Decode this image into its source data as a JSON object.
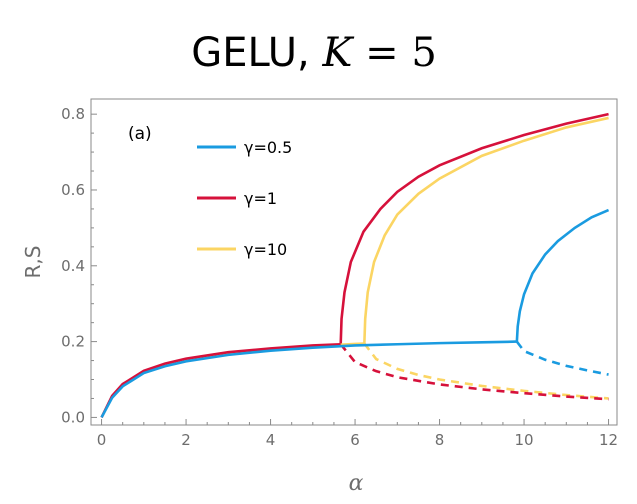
{
  "chart_data": {
    "type": "line",
    "title": {
      "prefix": "GELU,",
      "math_symbol": "K",
      "math_rest": " = 5"
    },
    "panel_label": "(a)",
    "xlabel": "α",
    "ylabel": "R,S",
    "xlim": [
      -0.25,
      12.2
    ],
    "ylim": [
      -0.02,
      0.84
    ],
    "xticks": [
      0,
      2,
      4,
      6,
      8,
      10,
      12
    ],
    "xtick_labels": [
      "0",
      "2",
      "4",
      "6",
      "8",
      "10",
      "12"
    ],
    "yticks": [
      0.0,
      0.2,
      0.4,
      0.6,
      0.8
    ],
    "ytick_labels": [
      "0.0",
      "0.2",
      "0.4",
      "0.6",
      "0.8"
    ],
    "grid": false,
    "legend_position": "top-center",
    "series": [
      {
        "name": "γ=0.5",
        "color": "#1a9be0",
        "transition_alpha": 9.83,
        "lower_branch": {
          "x": [
            0,
            0.25,
            0.5,
            1,
            1.5,
            2,
            3,
            4,
            5,
            6,
            7,
            8,
            9,
            9.83
          ],
          "y": [
            0,
            0.052,
            0.082,
            0.117,
            0.135,
            0.148,
            0.165,
            0.176,
            0.184,
            0.19,
            0.193,
            0.196,
            0.198,
            0.2
          ]
        },
        "upper_branch": {
          "x": [
            9.83,
            9.85,
            9.9,
            10,
            10.2,
            10.5,
            10.8,
            11.2,
            11.6,
            12
          ],
          "y": [
            0.2,
            0.24,
            0.28,
            0.325,
            0.38,
            0.43,
            0.465,
            0.5,
            0.528,
            0.547
          ]
        },
        "unstable_branch": {
          "x": [
            9.83,
            10,
            10.5,
            11,
            11.5,
            12
          ],
          "y": [
            0.2,
            0.175,
            0.152,
            0.136,
            0.124,
            0.113
          ]
        }
      },
      {
        "name": "γ=1",
        "color": "#d6113b",
        "transition_alpha": 5.66,
        "lower_branch": {
          "x": [
            0,
            0.25,
            0.5,
            1,
            1.5,
            2,
            3,
            4,
            5,
            5.66
          ],
          "y": [
            0,
            0.057,
            0.088,
            0.123,
            0.142,
            0.155,
            0.172,
            0.182,
            0.19,
            0.193
          ]
        },
        "upper_branch": {
          "x": [
            5.66,
            5.68,
            5.75,
            5.9,
            6.2,
            6.6,
            7,
            7.5,
            8,
            9,
            10,
            11,
            12
          ],
          "y": [
            0.193,
            0.26,
            0.33,
            0.41,
            0.49,
            0.55,
            0.595,
            0.635,
            0.665,
            0.71,
            0.745,
            0.775,
            0.8
          ]
        },
        "unstable_branch": {
          "x": [
            5.66,
            6,
            6.5,
            7,
            8,
            9,
            10,
            11,
            12
          ],
          "y": [
            0.193,
            0.146,
            0.122,
            0.106,
            0.087,
            0.074,
            0.064,
            0.055,
            0.048
          ]
        }
      },
      {
        "name": "γ=10",
        "color": "#fbd563",
        "transition_alpha": 6.22,
        "lower_branch": {
          "x": [
            0,
            0.25,
            0.5,
            1,
            1.5,
            2,
            3,
            4,
            5,
            6,
            6.22
          ],
          "y": [
            0,
            0.055,
            0.085,
            0.121,
            0.14,
            0.152,
            0.17,
            0.18,
            0.188,
            0.194,
            0.195
          ]
        },
        "upper_branch": {
          "x": [
            6.22,
            6.24,
            6.3,
            6.45,
            6.7,
            7,
            7.5,
            8,
            9,
            10,
            11,
            12
          ],
          "y": [
            0.195,
            0.26,
            0.33,
            0.41,
            0.48,
            0.535,
            0.59,
            0.63,
            0.69,
            0.73,
            0.765,
            0.79
          ]
        },
        "unstable_branch": {
          "x": [
            6.22,
            6.5,
            7,
            7.5,
            8,
            9,
            10,
            11,
            12
          ],
          "y": [
            0.195,
            0.154,
            0.128,
            0.112,
            0.1,
            0.083,
            0.07,
            0.059,
            0.05
          ]
        }
      }
    ]
  }
}
